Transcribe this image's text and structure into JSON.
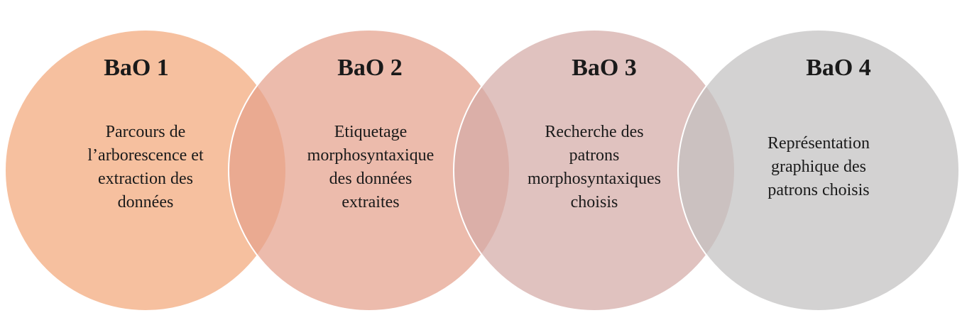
{
  "diagram": {
    "circles": [
      {
        "title": "BaO 1",
        "lines": [
          "Parcours de",
          "l’arborescence et",
          "extraction des",
          "données"
        ],
        "color": "#f2a87a"
      },
      {
        "title": "BaO 2",
        "lines": [
          "Etiquetage",
          "morphosyntaxique",
          "des données",
          "extraites"
        ],
        "color": "#e5a18c"
      },
      {
        "title": "BaO 3",
        "lines": [
          "Recherche des",
          "patrons",
          "morphosyntaxiques",
          "choisis"
        ],
        "color": "#d4aaa6"
      },
      {
        "title": "BaO 4",
        "lines": [
          "Représentation",
          "graphique des",
          "patrons choisis"
        ],
        "color": "#c2c0c0"
      }
    ]
  }
}
